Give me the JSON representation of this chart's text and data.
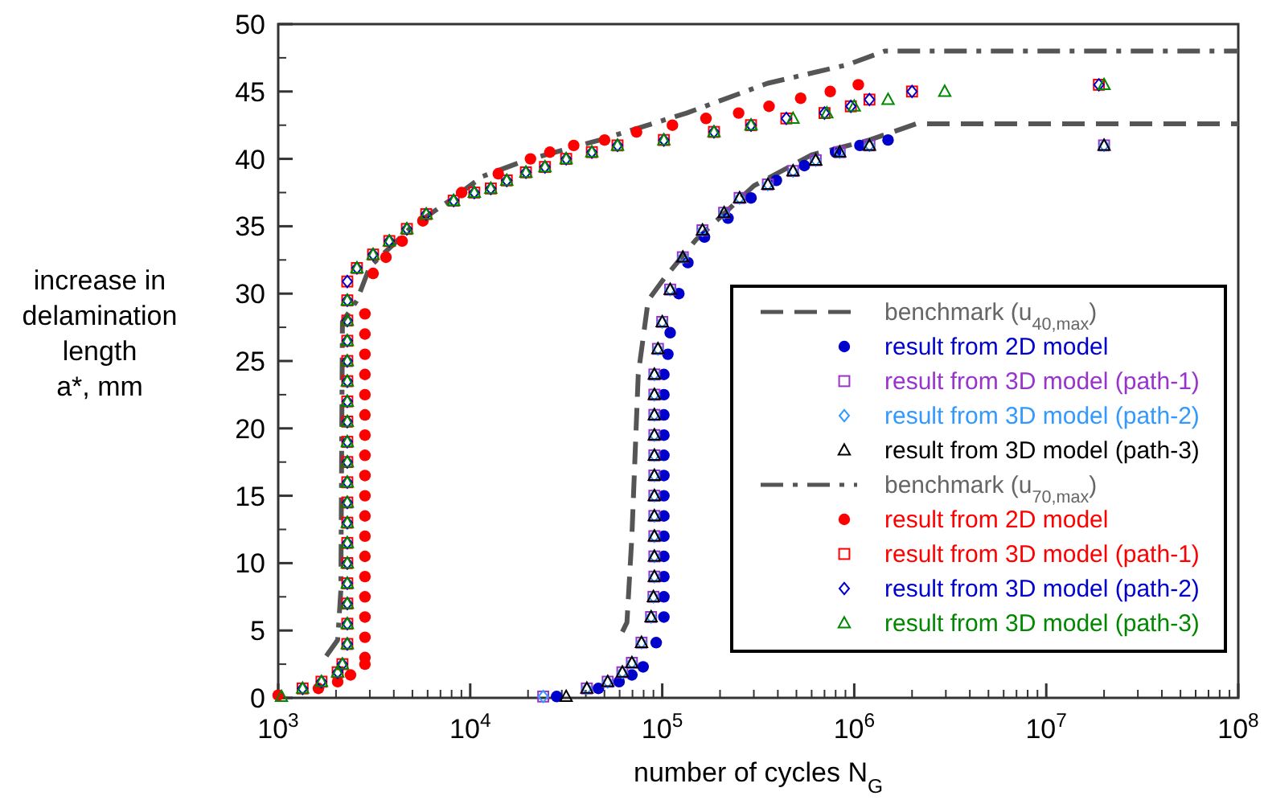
{
  "chart_data": {
    "type": "scatter",
    "xlabel": "number of cycles N$_{G}$",
    "ylabel": "increase in\ndelamination\nlength\na*, mm",
    "log": "x",
    "xlim": [
      1000,
      100000000
    ],
    "ylim": [
      0,
      50
    ],
    "xticks": [
      {
        "value": 1000,
        "label": "10$^{3}$"
      },
      {
        "value": 10000,
        "label": "10$^{4}$"
      },
      {
        "value": 100000,
        "label": "10$^{5}$"
      },
      {
        "value": 1000000,
        "label": "10$^{6}$"
      },
      {
        "value": 10000000,
        "label": "10$^{7}$"
      },
      {
        "value": 100000000,
        "label": "10$^{8}$"
      }
    ],
    "yticks": [
      0,
      5,
      10,
      15,
      20,
      25,
      30,
      35,
      40,
      45,
      50
    ],
    "grid": false,
    "legend": "bottom right",
    "series": [
      {
        "name": "benchmark (u$_{40,max}$)",
        "type": "line",
        "line_style": "dashed",
        "color": "#555555",
        "x": [
          62000,
          65500,
          69500,
          75000,
          84500,
          102000,
          150000,
          300000,
          600000,
          1200000,
          2100000,
          100000000
        ],
        "values": [
          4.9,
          5.6,
          12,
          24,
          29.5,
          31.1,
          34,
          38,
          40.3,
          41.4,
          42.6,
          42.6
        ]
      },
      {
        "name": "result from 2D model",
        "marker": "circle",
        "color": "#0000cc",
        "x": [
          28200,
          46500,
          59600,
          69500,
          79500,
          93000,
          102000,
          102000,
          102000,
          102000,
          102000,
          102000,
          102000,
          102000,
          102000,
          102000,
          102000,
          102000,
          102000,
          107000,
          110000,
          122000,
          136000,
          166000,
          220000,
          290000,
          393000,
          550000,
          800000,
          1070000,
          1500000
        ],
        "values": [
          0.1,
          0.7,
          1.2,
          1.7,
          2.3,
          4.1,
          6,
          7.5,
          9,
          10.5,
          12,
          13.5,
          15,
          16.5,
          18,
          19.5,
          21,
          22.5,
          24,
          25.5,
          27.1,
          30,
          32.3,
          34.2,
          35.6,
          37.1,
          38.4,
          39.5,
          40.5,
          41,
          41.4
        ]
      },
      {
        "name": "result from 3D model (path-1)",
        "marker": "square",
        "color": "#9933cc",
        "x": [
          24000,
          40500,
          52000,
          62000,
          69500,
          78000,
          87500,
          90000,
          91000,
          91000,
          91000,
          91000,
          91000,
          91000,
          91000,
          91000,
          91000,
          91000,
          91000,
          95000,
          100000,
          110000,
          128000,
          162000,
          210000,
          253000,
          355000,
          480000,
          630000,
          840000,
          1200000,
          20000000
        ],
        "values": [
          0.1,
          0.7,
          1.2,
          1.9,
          2.6,
          4.1,
          6,
          7.5,
          9,
          10.5,
          12,
          13.5,
          15,
          16.5,
          18,
          19.5,
          21,
          22.5,
          24,
          25.9,
          27.9,
          30.3,
          32.7,
          34.7,
          36,
          37.1,
          38.1,
          39.1,
          39.9,
          40.5,
          41,
          41
        ]
      },
      {
        "name": "result from 3D model (path-2)",
        "marker": "diamond",
        "color": "#3399ff",
        "x": [
          24000,
          40500,
          52000,
          62000,
          69500,
          78000,
          87500,
          90000,
          91000,
          91000,
          91000,
          91000,
          91000,
          91000,
          91000,
          91000,
          91000,
          91000,
          91000,
          95000,
          100000,
          110000,
          128000,
          162000,
          210000,
          253000,
          355000,
          480000,
          630000,
          840000,
          1200000,
          20000000
        ],
        "values": [
          0.1,
          0.7,
          1.2,
          1.9,
          2.6,
          4.1,
          6,
          7.5,
          9,
          10.5,
          12,
          13.5,
          15,
          16.5,
          18,
          19.5,
          21,
          22.5,
          24,
          25.9,
          27.9,
          30.3,
          32.7,
          34.7,
          36,
          37.1,
          38.1,
          39.1,
          39.9,
          40.5,
          41,
          41
        ]
      },
      {
        "name": "result from 3D model (path-3)",
        "marker": "triangle",
        "color": "#000000",
        "x": [
          31600,
          40500,
          52000,
          62000,
          69500,
          78000,
          87500,
          90000,
          91000,
          91000,
          91000,
          91000,
          91000,
          91000,
          91000,
          91000,
          91000,
          91000,
          91000,
          95000,
          100000,
          110000,
          128000,
          162000,
          210000,
          253000,
          355000,
          480000,
          630000,
          840000,
          1200000,
          20000000
        ],
        "values": [
          0.1,
          0.7,
          1.2,
          1.9,
          2.6,
          4.1,
          6,
          7.5,
          9,
          10.5,
          12,
          13.5,
          15,
          16.5,
          18,
          19.5,
          21,
          22.5,
          24,
          25.9,
          27.9,
          30.3,
          32.7,
          34.7,
          36,
          37.1,
          38.1,
          39.1,
          39.9,
          40.5,
          41,
          41
        ]
      },
      {
        "name": "benchmark (u$_{70,max}$)",
        "type": "line",
        "line_style": "dashdot",
        "color": "#555555",
        "x": [
          1780,
          2040,
          2120,
          2160,
          2570,
          3000,
          5000,
          8000,
          11600,
          19500,
          47300,
          134000,
          352000,
          930000,
          1440000,
          100000000
        ],
        "values": [
          3.1,
          4.3,
          8,
          27.9,
          29.5,
          32,
          35,
          37,
          38.7,
          39.9,
          41.4,
          43.4,
          45.6,
          47,
          48,
          48
        ]
      },
      {
        "name": "result from 2D model",
        "marker": "circle",
        "color": "#ff0000",
        "x": [
          1000,
          1620,
          2040,
          2380,
          2830,
          2830,
          2830,
          2830,
          2830,
          2830,
          2830,
          2830,
          2830,
          2830,
          2830,
          2830,
          2830,
          2830,
          2830,
          2830,
          2830,
          2830,
          2830,
          3120,
          3640,
          4420,
          5670,
          9020,
          14000,
          20600,
          26000,
          34600,
          50100,
          73500,
          113000,
          169000,
          250000,
          360000,
          526000,
          750000,
          1050000
        ],
        "values": [
          0.2,
          0.7,
          1.2,
          1.7,
          2.5,
          3,
          4.5,
          6,
          7.5,
          9,
          10.5,
          12,
          13.5,
          15,
          16.5,
          18,
          19.5,
          21,
          22.5,
          24,
          25.5,
          27,
          28.5,
          31.5,
          32.7,
          33.9,
          35.4,
          37.5,
          38.9,
          40,
          40.5,
          41,
          41.4,
          42,
          42.5,
          43,
          43.4,
          43.9,
          44.5,
          45,
          45.5
        ]
      },
      {
        "name": "result from 3D model (path-1)",
        "marker": "square",
        "color": "#ff0000",
        "x": [
          1340,
          1680,
          2040,
          2160,
          2290,
          2290,
          2290,
          2290,
          2290,
          2290,
          2290,
          2290,
          2290,
          2290,
          2290,
          2290,
          2290,
          2290,
          2290,
          2290,
          2290,
          2290,
          2290,
          2570,
          3120,
          3790,
          4680,
          5900,
          8200,
          10500,
          12800,
          15500,
          19500,
          24500,
          31600,
          43000,
          58500,
          102000,
          186000,
          290000,
          443000,
          700000,
          960000,
          1200000,
          2000000,
          18800000
        ],
        "values": [
          0.7,
          1.2,
          1.9,
          2.5,
          4,
          5.5,
          7,
          8.5,
          10,
          11.5,
          13,
          14.5,
          16,
          17.5,
          19,
          20.5,
          22,
          23.5,
          25,
          26.5,
          28,
          29.5,
          30.9,
          31.9,
          32.9,
          33.9,
          34.8,
          35.9,
          36.9,
          37.5,
          37.8,
          38.4,
          39,
          39.4,
          40,
          40.5,
          41,
          41.4,
          42,
          42.5,
          43,
          43.4,
          43.9,
          44.4,
          45,
          45.5
        ]
      },
      {
        "name": "result from 3D model (path-2)",
        "marker": "diamond",
        "color": "#0000cc",
        "x": [
          1340,
          1680,
          2040,
          2160,
          2290,
          2290,
          2290,
          2290,
          2290,
          2290,
          2290,
          2290,
          2290,
          2290,
          2290,
          2290,
          2290,
          2290,
          2290,
          2290,
          2290,
          2290,
          2290,
          2570,
          3120,
          3790,
          4680,
          5900,
          8200,
          10500,
          12800,
          15500,
          19500,
          24500,
          31600,
          43000,
          58500,
          102000,
          186000,
          290000,
          443000,
          700000,
          960000,
          1200000,
          2000000,
          18800000
        ],
        "values": [
          0.7,
          1.2,
          1.9,
          2.5,
          4,
          5.5,
          7,
          8.5,
          10,
          11.5,
          13,
          14.5,
          16,
          17.5,
          19,
          20.5,
          22,
          23.5,
          25,
          26.5,
          28,
          29.5,
          30.9,
          31.9,
          32.9,
          33.9,
          34.8,
          35.9,
          36.9,
          37.5,
          37.8,
          38.4,
          39,
          39.4,
          40,
          40.5,
          41,
          41.4,
          42,
          42.5,
          43,
          43.4,
          43.9,
          44.4,
          45,
          45.5
        ]
      },
      {
        "name": "result from 3D model (path-3)",
        "marker": "triangle",
        "color": "#008800",
        "x": [
          1040,
          1340,
          1680,
          2040,
          2160,
          2290,
          2290,
          2290,
          2290,
          2290,
          2290,
          2290,
          2290,
          2290,
          2290,
          2290,
          2290,
          2290,
          2290,
          2290,
          2290,
          2290,
          2290,
          2570,
          3120,
          3790,
          4680,
          5900,
          8200,
          10500,
          12800,
          15500,
          19500,
          24500,
          31600,
          43000,
          58500,
          102000,
          186000,
          290000,
          480000,
          720000,
          1000000,
          1500000,
          2960000,
          20000000
        ],
        "values": [
          0.1,
          0.7,
          1.2,
          1.9,
          2.5,
          4,
          5.5,
          7,
          8.5,
          10,
          11.5,
          13,
          14.5,
          16,
          17.5,
          19,
          20.5,
          22,
          23.5,
          25,
          26.5,
          28,
          29.5,
          31.9,
          32.9,
          33.9,
          34.8,
          35.9,
          36.9,
          37.5,
          37.8,
          38.4,
          39,
          39.4,
          40,
          40.5,
          41,
          41.4,
          42,
          42.5,
          43,
          43.4,
          43.9,
          44.4,
          45,
          45.5
        ]
      }
    ]
  }
}
